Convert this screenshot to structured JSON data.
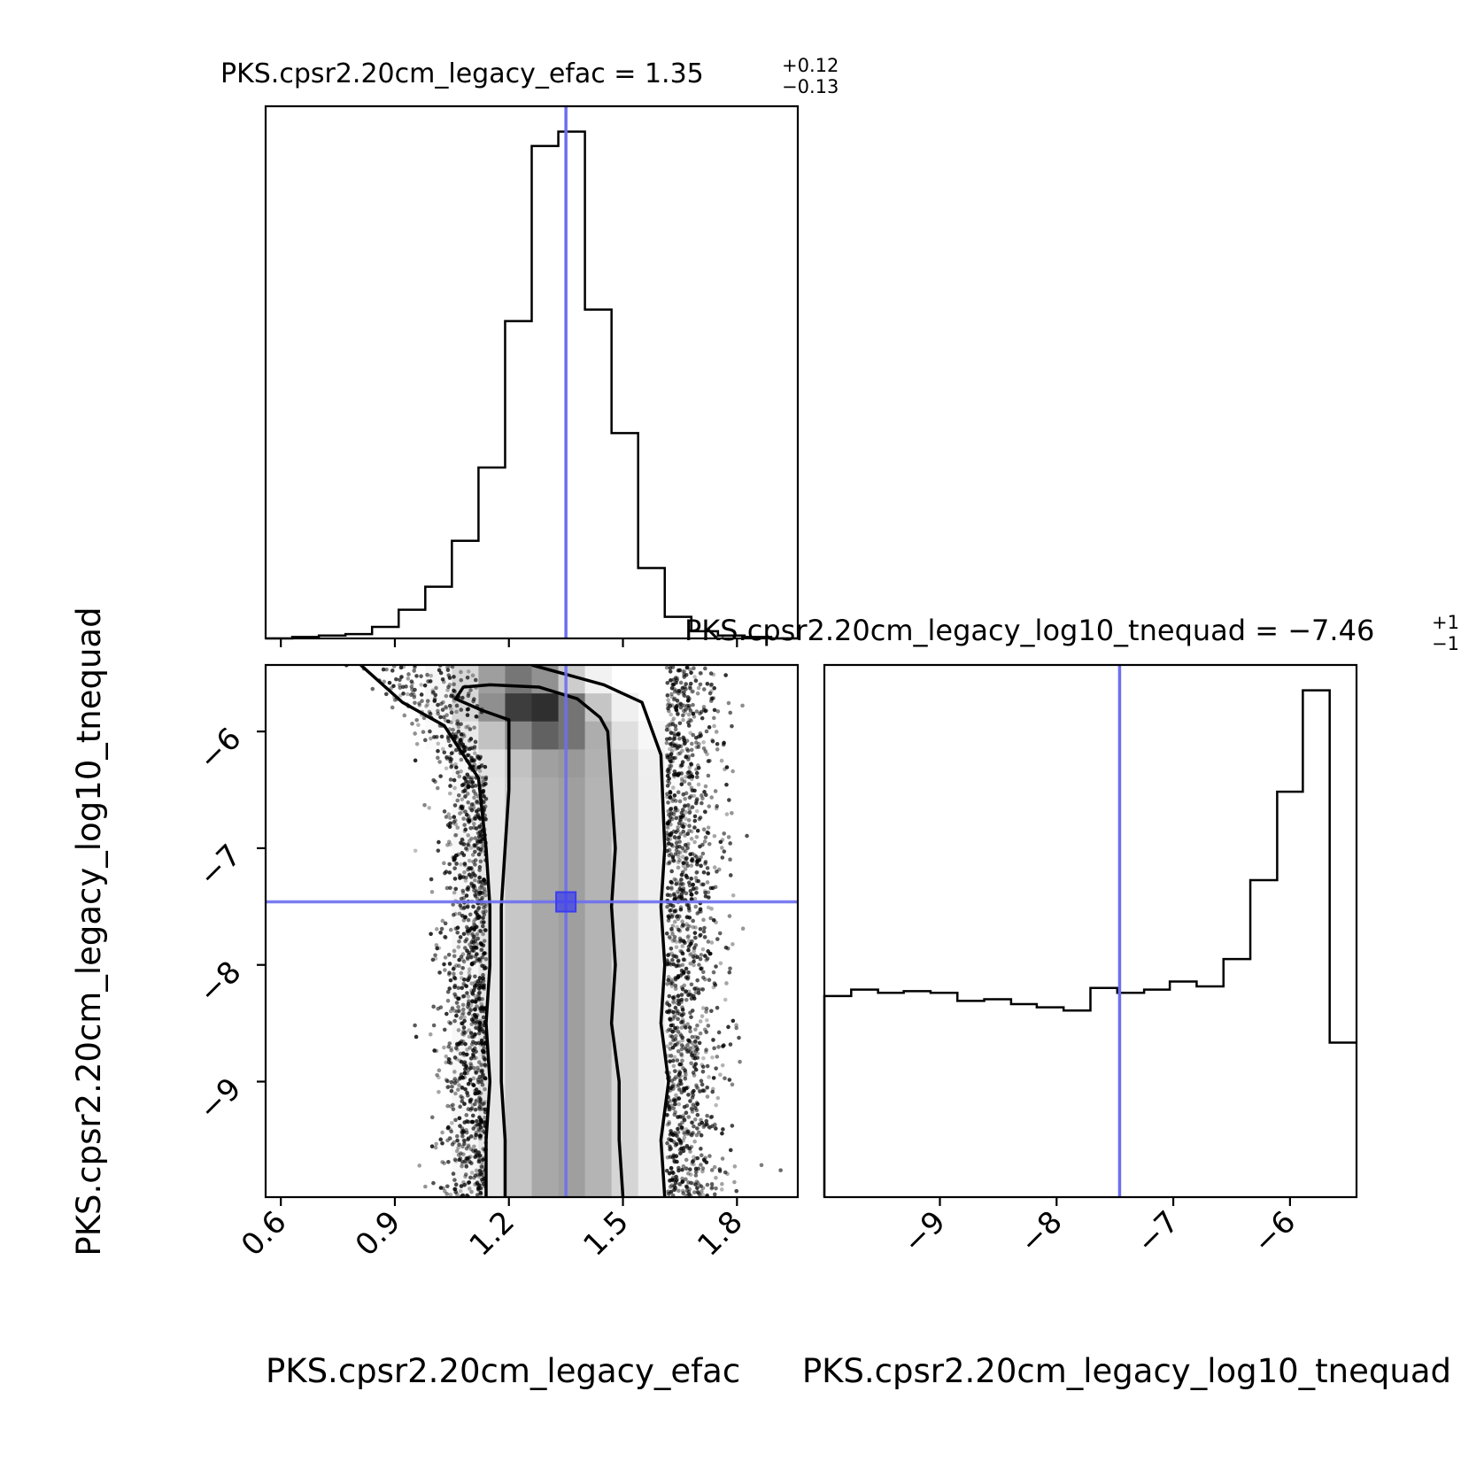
{
  "chart_data": [
    {
      "type": "histogram",
      "panel": "efac-marginal",
      "title_name": "PKS.cpsr2.20cm_legacy_efac",
      "title_value": "1.35",
      "title_plus": "+0.12",
      "title_minus": "−0.13",
      "xlim": [
        0.56,
        1.96
      ],
      "bin_edges": [
        0.56,
        0.63,
        0.7,
        0.77,
        0.84,
        0.91,
        0.98,
        1.05,
        1.12,
        1.19,
        1.26,
        1.33,
        1.4,
        1.47,
        1.54,
        1.61,
        1.68,
        1.75,
        1.82,
        1.89,
        1.96
      ],
      "counts": [
        0.0,
        0.1,
        0.2,
        0.3,
        0.8,
        2.0,
        3.6,
        6.8,
        11.9,
        22.1,
        34.3,
        35.3,
        22.9,
        14.3,
        4.9,
        1.5,
        0.5,
        0.2,
        0.1,
        0.0
      ],
      "truth": 1.35
    },
    {
      "type": "scatter-density",
      "panel": "efac-vs-log10_tnequad",
      "xlabel": "PKS.cpsr2.20cm_legacy_efac",
      "ylabel": "PKS.cpsr2.20cm_legacy_log10_tnequad",
      "xlim": [
        0.56,
        1.96
      ],
      "ylim": [
        -9.99,
        -5.43
      ],
      "xticks": [
        "0.6",
        "0.9",
        "1.2",
        "1.5",
        "1.8"
      ],
      "yticks": [
        "−6",
        "−7",
        "−8",
        "−9"
      ],
      "truth": [
        1.35,
        -7.46
      ],
      "density_peak": [
        1.22,
        -5.8
      ],
      "contour_inner_left": [
        [
          1.2,
          -5.9
        ],
        [
          1.2,
          -6.5
        ],
        [
          1.19,
          -7.0
        ],
        [
          1.18,
          -7.5
        ],
        [
          1.18,
          -8.0
        ],
        [
          1.18,
          -8.5
        ],
        [
          1.18,
          -9.0
        ],
        [
          1.19,
          -9.5
        ],
        [
          1.19,
          -9.99
        ]
      ],
      "contour_inner_right": [
        [
          1.46,
          -6.0
        ],
        [
          1.47,
          -6.5
        ],
        [
          1.48,
          -7.0
        ],
        [
          1.47,
          -7.5
        ],
        [
          1.48,
          -8.0
        ],
        [
          1.47,
          -8.5
        ],
        [
          1.49,
          -9.0
        ],
        [
          1.49,
          -9.5
        ],
        [
          1.5,
          -9.99
        ]
      ],
      "contour_outer_left": [
        [
          0.81,
          -5.43
        ],
        [
          0.92,
          -5.75
        ],
        [
          1.03,
          -5.95
        ],
        [
          1.12,
          -6.4
        ],
        [
          1.14,
          -7.0
        ],
        [
          1.15,
          -7.5
        ],
        [
          1.15,
          -8.0
        ],
        [
          1.14,
          -8.5
        ],
        [
          1.15,
          -9.0
        ],
        [
          1.14,
          -9.5
        ],
        [
          1.14,
          -9.99
        ]
      ],
      "contour_outer_right": [
        [
          1.26,
          -5.43
        ],
        [
          1.45,
          -5.6
        ],
        [
          1.55,
          -5.75
        ],
        [
          1.6,
          -6.2
        ],
        [
          1.61,
          -7.0
        ],
        [
          1.6,
          -7.5
        ],
        [
          1.61,
          -8.0
        ],
        [
          1.6,
          -8.5
        ],
        [
          1.62,
          -9.0
        ],
        [
          1.6,
          -9.5
        ],
        [
          1.61,
          -9.99
        ]
      ]
    },
    {
      "type": "histogram",
      "panel": "log10_tnequad-marginal",
      "title_name": "PKS.cpsr2.20cm_legacy_log10_tnequad",
      "title_value": "−7.46",
      "title_plus": "+1",
      "title_minus": "−1",
      "xlabel": "PKS.cpsr2.20cm_legacy_log10_tnequad",
      "xlabel_bottom_left": "PKS.cpsr2.20cm_legacy_efac",
      "xlim": [
        -9.99,
        -5.43
      ],
      "xticks": [
        "−9",
        "−8",
        "−7",
        "−6"
      ],
      "bin_edges": [
        -9.99,
        -9.76,
        -9.53,
        -9.31,
        -9.08,
        -8.85,
        -8.62,
        -8.39,
        -8.17,
        -7.94,
        -7.71,
        -7.48,
        -7.25,
        -7.03,
        -6.8,
        -6.57,
        -6.34,
        -6.11,
        -5.89,
        -5.66,
        -5.43
      ],
      "counts": [
        12.5,
        12.9,
        12.7,
        12.8,
        12.7,
        12.2,
        12.3,
        12.0,
        11.8,
        11.6,
        13.0,
        12.7,
        12.9,
        13.4,
        13.1,
        14.8,
        19.7,
        25.2,
        31.5,
        9.6
      ],
      "truth": -7.46
    }
  ],
  "colors": {
    "truth": "#6d6ff0",
    "hist": "#000000",
    "axes": "#000000"
  }
}
